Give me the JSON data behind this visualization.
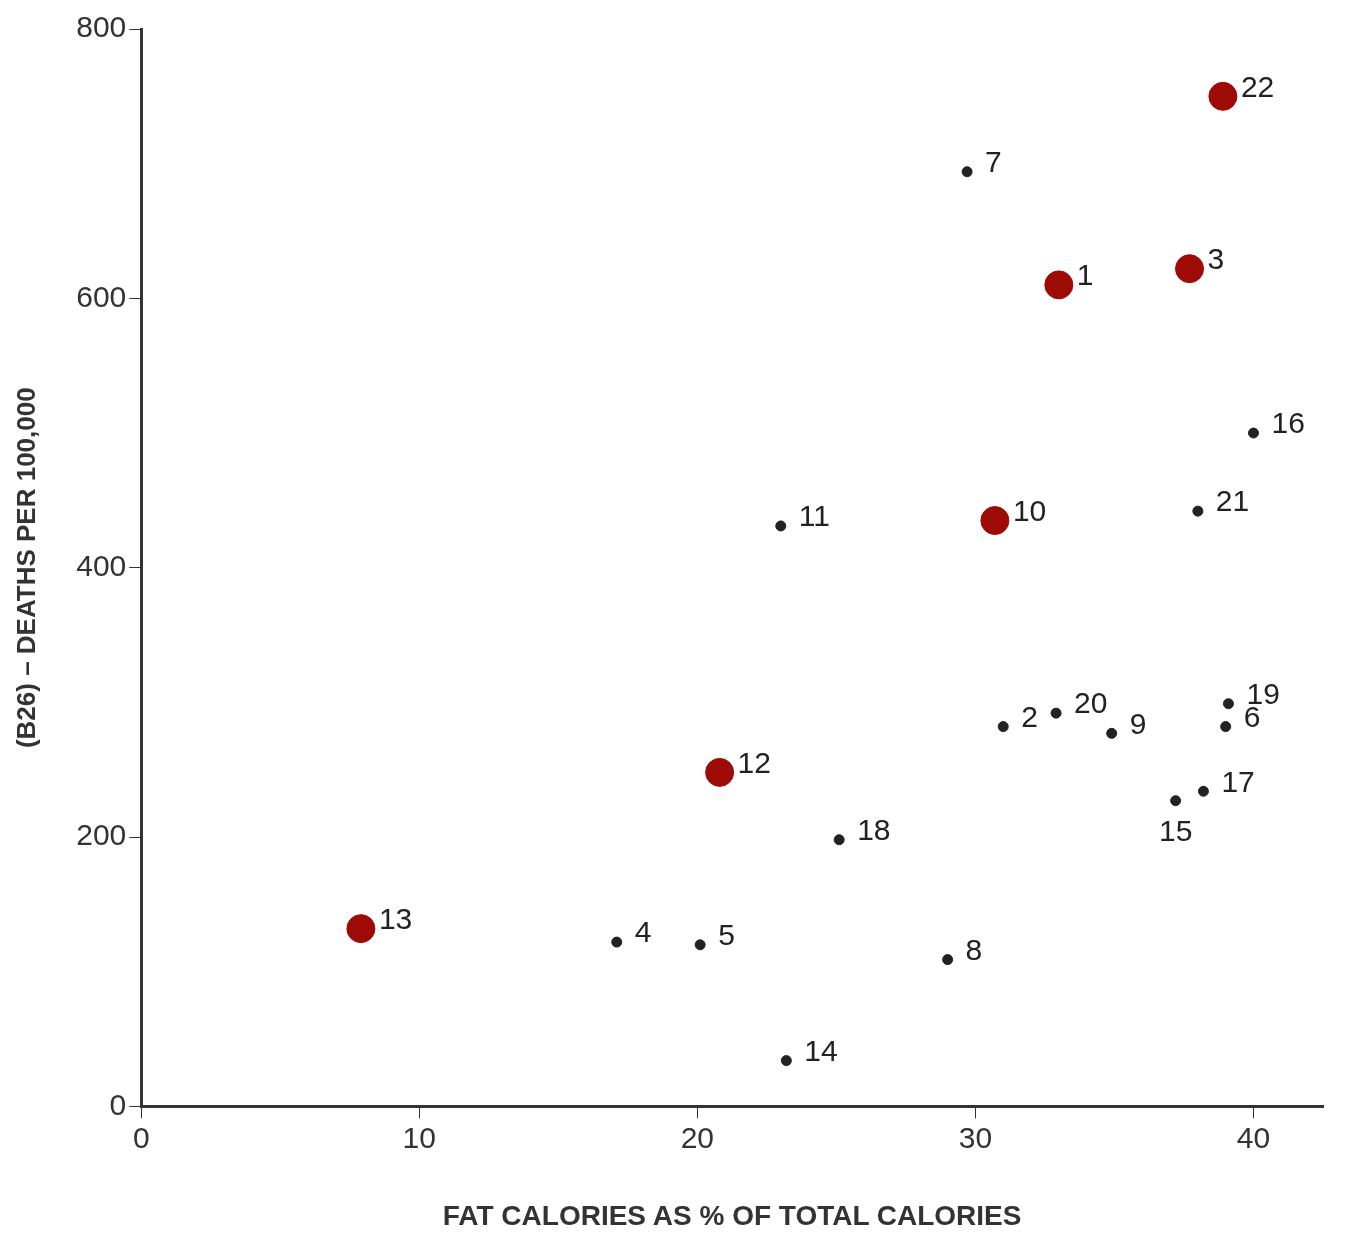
{
  "chart_data": {
    "type": "scatter",
    "xlabel": "FAT CALORIES AS % OF TOTAL CALORIES",
    "ylabel": "(B26) – DEATHS PER 100,000",
    "xlim": [
      0,
      42.5
    ],
    "ylim": [
      0,
      800
    ],
    "xticks": [
      0,
      10,
      20,
      30,
      40
    ],
    "yticks": [
      0,
      200,
      400,
      600,
      800
    ],
    "grid": false,
    "legend": false,
    "marker": "circle",
    "series": [
      {
        "color": "#9e0a05",
        "x": [
          33.0,
          37.7,
          30.7,
          20.8,
          7.9,
          38.9
        ],
        "values": [
          610,
          622,
          435,
          248,
          132,
          750
        ]
      },
      {
        "color": "#222222",
        "x": [
          31.0,
          17.1,
          20.1,
          39.0,
          29.7,
          29.0,
          34.9,
          23.0,
          23.2,
          37.2,
          40.0,
          38.2,
          25.1,
          39.1,
          32.9,
          38.0
        ],
        "values": [
          282,
          122,
          120,
          282,
          694,
          109,
          277,
          431,
          34,
          227,
          500,
          234,
          198,
          299,
          292,
          442
        ]
      }
    ],
    "annotations": [
      {
        "text": "1",
        "x": 33.0,
        "y": 610
      },
      {
        "text": "2",
        "x": 31.0,
        "y": 282
      },
      {
        "text": "3",
        "x": 37.7,
        "y": 622
      },
      {
        "text": "4",
        "x": 17.1,
        "y": 122
      },
      {
        "text": "5",
        "x": 20.1,
        "y": 120
      },
      {
        "text": "6",
        "x": 39.0,
        "y": 282
      },
      {
        "text": "7",
        "x": 29.7,
        "y": 694
      },
      {
        "text": "8",
        "x": 29.0,
        "y": 109
      },
      {
        "text": "9",
        "x": 34.9,
        "y": 277
      },
      {
        "text": "10",
        "x": 30.7,
        "y": 435
      },
      {
        "text": "11",
        "x": 23.0,
        "y": 431
      },
      {
        "text": "12",
        "x": 20.8,
        "y": 248
      },
      {
        "text": "13",
        "x": 7.9,
        "y": 132
      },
      {
        "text": "14",
        "x": 23.2,
        "y": 34
      },
      {
        "text": "15",
        "x": 37.2,
        "y": 227
      },
      {
        "text": "16",
        "x": 40.0,
        "y": 500
      },
      {
        "text": "17",
        "x": 38.2,
        "y": 234
      },
      {
        "text": "18",
        "x": 25.1,
        "y": 198
      },
      {
        "text": "19",
        "x": 39.1,
        "y": 299
      },
      {
        "text": "20",
        "x": 32.9,
        "y": 292
      },
      {
        "text": "21",
        "x": 38.0,
        "y": 442
      },
      {
        "text": "22",
        "x": 38.9,
        "y": 750
      }
    ]
  }
}
